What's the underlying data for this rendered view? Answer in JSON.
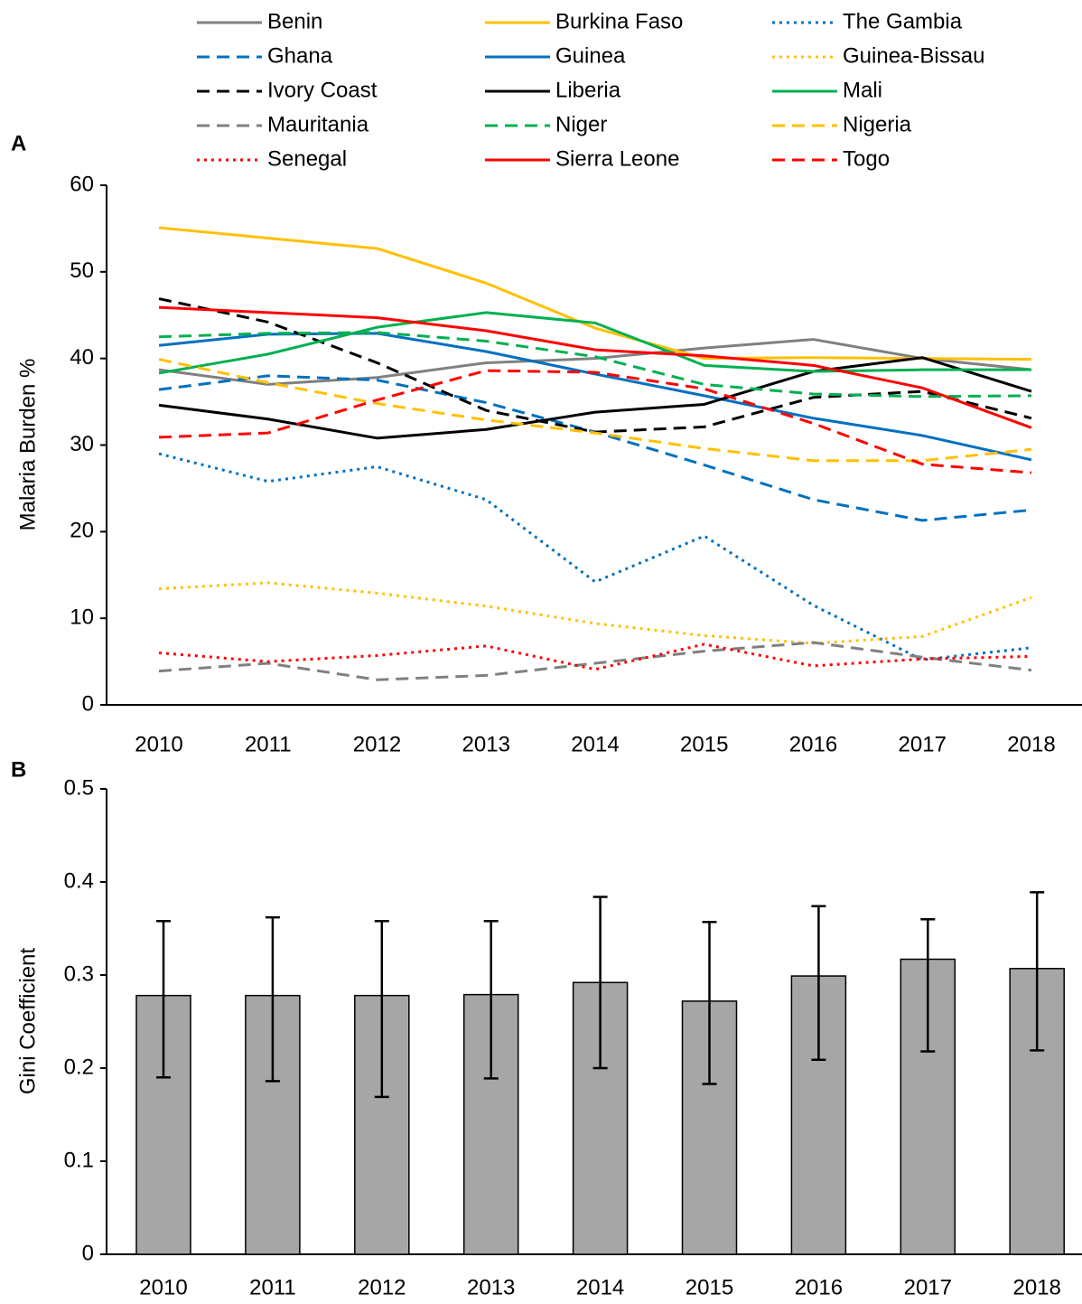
{
  "chart_data": [
    {
      "type": "line",
      "panel_label": "A",
      "ylabel": "Malaria Burden %",
      "categories": [
        "2010",
        "2011",
        "2012",
        "2013",
        "2014",
        "2015",
        "2016",
        "2017",
        "2018"
      ],
      "ylim": [
        0,
        60
      ],
      "yticks": [
        0,
        10,
        20,
        30,
        40,
        50,
        60
      ],
      "legend": "top",
      "series": [
        {
          "name": "Benin",
          "color": "#808080",
          "dash": "solid",
          "values": [
            38.7,
            37,
            37.8,
            39.5,
            40,
            41.2,
            42.2,
            40,
            38.7
          ]
        },
        {
          "name": "Burkina Faso",
          "color": "#FFC000",
          "dash": "solid",
          "values": [
            55.1,
            53.9,
            52.7,
            48.7,
            43.5,
            40,
            40.1,
            40,
            39.9
          ]
        },
        {
          "name": "The Gambia",
          "color": "#0070C0",
          "dash": "dotted",
          "values": [
            29,
            25.8,
            27.5,
            23.7,
            14.2,
            19.5,
            11.5,
            5.2,
            6.6
          ]
        },
        {
          "name": "Ghana",
          "color": "#0070C0",
          "dash": "dashed",
          "values": [
            36.4,
            38,
            37.5,
            34.9,
            31.5,
            27.7,
            23.7,
            21.3,
            22.5
          ]
        },
        {
          "name": "Guinea",
          "color": "#0070C0",
          "dash": "solid",
          "values": [
            41.5,
            42.8,
            42.9,
            40.8,
            38.2,
            35.7,
            33.1,
            31.1,
            28.3
          ]
        },
        {
          "name": "Guinea-Bissau",
          "color": "#FFC000",
          "dash": "dotted",
          "values": [
            13.4,
            14.1,
            12.9,
            11.4,
            9.4,
            8,
            7.1,
            7.9,
            12.4
          ]
        },
        {
          "name": "Ivory Coast",
          "color": "#000000",
          "dash": "dashed",
          "values": [
            46.9,
            44.2,
            39.5,
            34,
            31.5,
            32.1,
            35.5,
            36.2,
            33.1
          ]
        },
        {
          "name": "Liberia",
          "color": "#000000",
          "dash": "solid",
          "values": [
            34.6,
            33,
            30.8,
            31.8,
            33.8,
            34.7,
            38.5,
            40.1,
            36.2
          ]
        },
        {
          "name": "Mali",
          "color": "#00B050",
          "dash": "solid",
          "values": [
            38.3,
            40.5,
            43.6,
            45.3,
            44.1,
            39.2,
            38.5,
            38.7,
            38.7
          ]
        },
        {
          "name": "Mauritania",
          "color": "#808080",
          "dash": "dashed",
          "values": [
            3.9,
            4.8,
            2.9,
            3.4,
            4.8,
            6.2,
            7.2,
            5.5,
            4
          ]
        },
        {
          "name": "Niger",
          "color": "#00B050",
          "dash": "dashed",
          "values": [
            42.5,
            42.9,
            43,
            42,
            40.2,
            37,
            35.9,
            35.6,
            35.7
          ]
        },
        {
          "name": "Nigeria",
          "color": "#FFC000",
          "dash": "dashed",
          "values": [
            39.9,
            37.2,
            34.8,
            32.9,
            31.4,
            29.6,
            28.2,
            28.2,
            29.5
          ]
        },
        {
          "name": "Senegal",
          "color": "#FF0000",
          "dash": "dotted",
          "values": [
            6,
            5,
            5.7,
            6.8,
            4.1,
            7,
            4.5,
            5.3,
            5.6
          ]
        },
        {
          "name": "Sierra Leone",
          "color": "#FF0000",
          "dash": "solid",
          "values": [
            45.9,
            45.3,
            44.7,
            43.2,
            41,
            40.3,
            39.2,
            36.6,
            32
          ]
        },
        {
          "name": "Togo",
          "color": "#FF0000",
          "dash": "dashed",
          "values": [
            30.9,
            31.4,
            35.2,
            38.6,
            38.4,
            36.5,
            32.5,
            27.8,
            26.8
          ]
        }
      ]
    },
    {
      "type": "bar",
      "panel_label": "B",
      "ylabel": "Gini Coefficient",
      "categories": [
        "2010",
        "2011",
        "2012",
        "2013",
        "2014",
        "2015",
        "2016",
        "2017",
        "2018"
      ],
      "ylim": [
        0,
        0.5
      ],
      "yticks": [
        0,
        0.1,
        0.2,
        0.3,
        0.4,
        0.5
      ],
      "color": "#A6A6A6",
      "values": [
        0.278,
        0.278,
        0.278,
        0.279,
        0.292,
        0.272,
        0.299,
        0.317,
        0.307
      ],
      "errors_minus": [
        0.088,
        0.092,
        0.109,
        0.09,
        0.092,
        0.089,
        0.09,
        0.099,
        0.088
      ],
      "errors_plus": [
        0.08,
        0.084,
        0.08,
        0.079,
        0.092,
        0.085,
        0.075,
        0.043,
        0.082
      ]
    }
  ]
}
